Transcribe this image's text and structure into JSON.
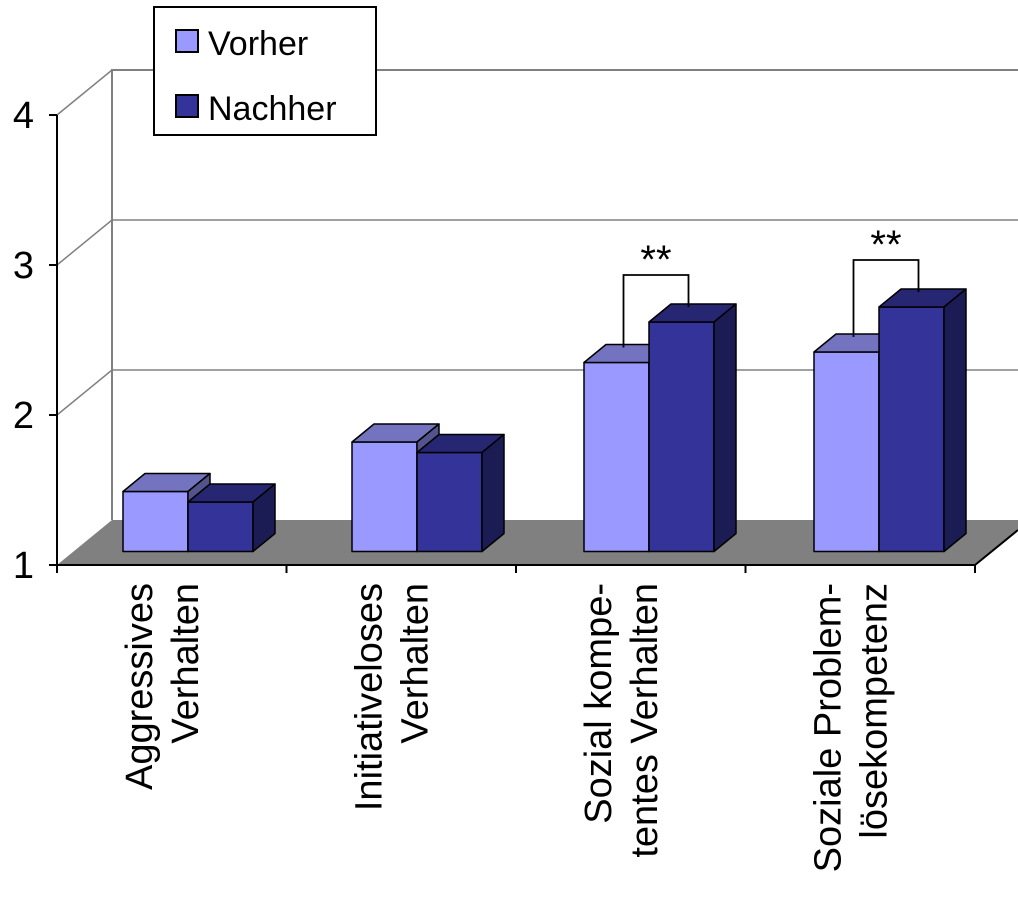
{
  "colors": {
    "vorher": "#9999ff",
    "nachher": "#333399",
    "floor": "#808080",
    "grid": "#808080",
    "axis": "#000000"
  },
  "chart_data": {
    "type": "bar",
    "style": "3d-clustered",
    "categories": [
      [
        "Aggressives",
        "Verhalten"
      ],
      [
        "Initiativeloses",
        "Verhalten"
      ],
      [
        "Sozial kompe-",
        "tentes Verhalten"
      ],
      [
        "Soziale Problem-",
        "lösekompetenz"
      ]
    ],
    "series": [
      {
        "name": "Vorher",
        "color": "#9999ff",
        "values": [
          1.4,
          1.73,
          2.26,
          2.33
        ]
      },
      {
        "name": "Nachher",
        "color": "#333399",
        "values": [
          1.33,
          1.66,
          2.53,
          2.63
        ]
      }
    ],
    "yticks": [
      1,
      2,
      3,
      4
    ],
    "ylim": [
      1,
      4
    ],
    "grid": true,
    "legend": "top-left",
    "significance": [
      {
        "category": 2,
        "label": "**"
      },
      {
        "category": 3,
        "label": "**"
      }
    ]
  }
}
